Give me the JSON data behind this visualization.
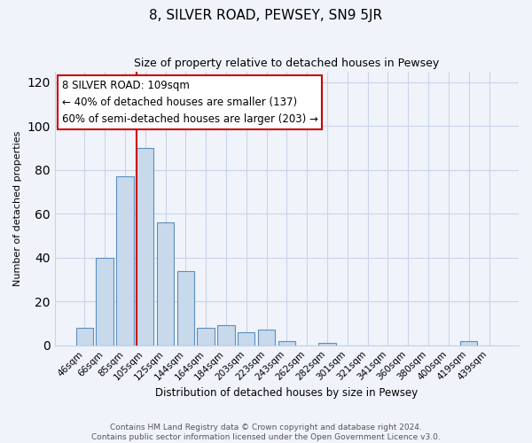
{
  "title": "8, SILVER ROAD, PEWSEY, SN9 5JR",
  "subtitle": "Size of property relative to detached houses in Pewsey",
  "xlabel": "Distribution of detached houses by size in Pewsey",
  "ylabel": "Number of detached properties",
  "bar_labels": [
    "46sqm",
    "66sqm",
    "85sqm",
    "105sqm",
    "125sqm",
    "144sqm",
    "164sqm",
    "184sqm",
    "203sqm",
    "223sqm",
    "243sqm",
    "262sqm",
    "282sqm",
    "301sqm",
    "321sqm",
    "341sqm",
    "360sqm",
    "380sqm",
    "400sqm",
    "419sqm",
    "439sqm"
  ],
  "bar_values": [
    8,
    40,
    77,
    90,
    56,
    34,
    8,
    9,
    6,
    7,
    2,
    0,
    1,
    0,
    0,
    0,
    0,
    0,
    0,
    2,
    0
  ],
  "bar_color": "#c9d9ec",
  "bar_edge_color": "#5a8fc0",
  "annotation_text_line1": "8 SILVER ROAD: 109sqm",
  "annotation_text_line2": "← 40% of detached houses are smaller (137)",
  "annotation_text_line3": "60% of semi-detached houses are larger (203) →",
  "annotation_box_color": "#ffffff",
  "annotation_box_edge_color": "#cc0000",
  "vline_color": "#cc0000",
  "vline_x_index": 3,
  "ylim": [
    0,
    125
  ],
  "yticks": [
    0,
    20,
    40,
    60,
    80,
    100,
    120
  ],
  "footer_line1": "Contains HM Land Registry data © Crown copyright and database right 2024.",
  "footer_line2": "Contains public sector information licensed under the Open Government Licence v3.0.",
  "bg_color": "#f0f4fa",
  "grid_color": "#c8d4e8",
  "title_fontsize": 11,
  "subtitle_fontsize": 9,
  "xlabel_fontsize": 8.5,
  "ylabel_fontsize": 8,
  "tick_fontsize": 7.5,
  "annotation_fontsize": 8.5,
  "footer_fontsize": 6.5
}
